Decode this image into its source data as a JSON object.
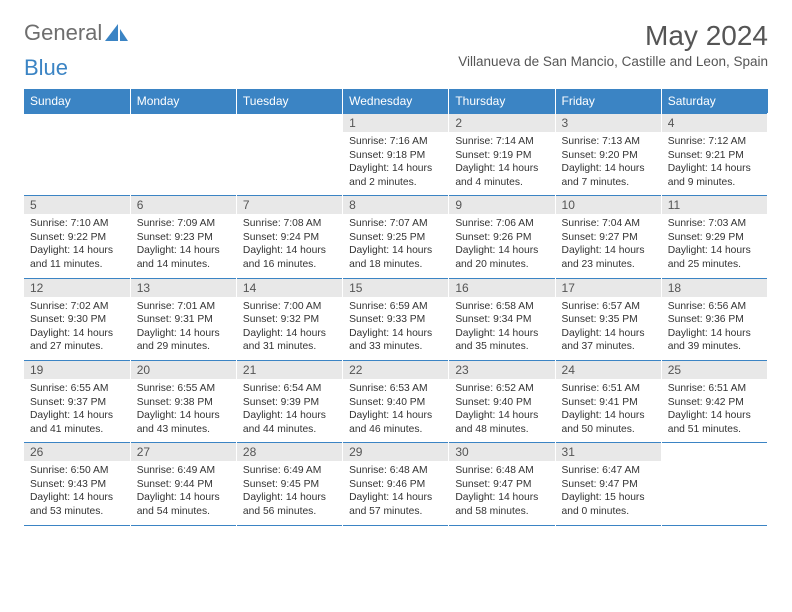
{
  "brand": {
    "part1": "General",
    "part2": "Blue"
  },
  "title": "May 2024",
  "location": "Villanueva de San Mancio, Castille and Leon, Spain",
  "colors": {
    "accent": "#3b84c4",
    "dayband": "#e8e8e8",
    "text": "#333333",
    "heading": "#555555"
  },
  "weekdays": [
    "Sunday",
    "Monday",
    "Tuesday",
    "Wednesday",
    "Thursday",
    "Friday",
    "Saturday"
  ],
  "weeks": [
    [
      null,
      null,
      null,
      {
        "n": "1",
        "sr": "Sunrise: 7:16 AM",
        "ss": "Sunset: 9:18 PM",
        "dl": "Daylight: 14 hours and 2 minutes."
      },
      {
        "n": "2",
        "sr": "Sunrise: 7:14 AM",
        "ss": "Sunset: 9:19 PM",
        "dl": "Daylight: 14 hours and 4 minutes."
      },
      {
        "n": "3",
        "sr": "Sunrise: 7:13 AM",
        "ss": "Sunset: 9:20 PM",
        "dl": "Daylight: 14 hours and 7 minutes."
      },
      {
        "n": "4",
        "sr": "Sunrise: 7:12 AM",
        "ss": "Sunset: 9:21 PM",
        "dl": "Daylight: 14 hours and 9 minutes."
      }
    ],
    [
      {
        "n": "5",
        "sr": "Sunrise: 7:10 AM",
        "ss": "Sunset: 9:22 PM",
        "dl": "Daylight: 14 hours and 11 minutes."
      },
      {
        "n": "6",
        "sr": "Sunrise: 7:09 AM",
        "ss": "Sunset: 9:23 PM",
        "dl": "Daylight: 14 hours and 14 minutes."
      },
      {
        "n": "7",
        "sr": "Sunrise: 7:08 AM",
        "ss": "Sunset: 9:24 PM",
        "dl": "Daylight: 14 hours and 16 minutes."
      },
      {
        "n": "8",
        "sr": "Sunrise: 7:07 AM",
        "ss": "Sunset: 9:25 PM",
        "dl": "Daylight: 14 hours and 18 minutes."
      },
      {
        "n": "9",
        "sr": "Sunrise: 7:06 AM",
        "ss": "Sunset: 9:26 PM",
        "dl": "Daylight: 14 hours and 20 minutes."
      },
      {
        "n": "10",
        "sr": "Sunrise: 7:04 AM",
        "ss": "Sunset: 9:27 PM",
        "dl": "Daylight: 14 hours and 23 minutes."
      },
      {
        "n": "11",
        "sr": "Sunrise: 7:03 AM",
        "ss": "Sunset: 9:29 PM",
        "dl": "Daylight: 14 hours and 25 minutes."
      }
    ],
    [
      {
        "n": "12",
        "sr": "Sunrise: 7:02 AM",
        "ss": "Sunset: 9:30 PM",
        "dl": "Daylight: 14 hours and 27 minutes."
      },
      {
        "n": "13",
        "sr": "Sunrise: 7:01 AM",
        "ss": "Sunset: 9:31 PM",
        "dl": "Daylight: 14 hours and 29 minutes."
      },
      {
        "n": "14",
        "sr": "Sunrise: 7:00 AM",
        "ss": "Sunset: 9:32 PM",
        "dl": "Daylight: 14 hours and 31 minutes."
      },
      {
        "n": "15",
        "sr": "Sunrise: 6:59 AM",
        "ss": "Sunset: 9:33 PM",
        "dl": "Daylight: 14 hours and 33 minutes."
      },
      {
        "n": "16",
        "sr": "Sunrise: 6:58 AM",
        "ss": "Sunset: 9:34 PM",
        "dl": "Daylight: 14 hours and 35 minutes."
      },
      {
        "n": "17",
        "sr": "Sunrise: 6:57 AM",
        "ss": "Sunset: 9:35 PM",
        "dl": "Daylight: 14 hours and 37 minutes."
      },
      {
        "n": "18",
        "sr": "Sunrise: 6:56 AM",
        "ss": "Sunset: 9:36 PM",
        "dl": "Daylight: 14 hours and 39 minutes."
      }
    ],
    [
      {
        "n": "19",
        "sr": "Sunrise: 6:55 AM",
        "ss": "Sunset: 9:37 PM",
        "dl": "Daylight: 14 hours and 41 minutes."
      },
      {
        "n": "20",
        "sr": "Sunrise: 6:55 AM",
        "ss": "Sunset: 9:38 PM",
        "dl": "Daylight: 14 hours and 43 minutes."
      },
      {
        "n": "21",
        "sr": "Sunrise: 6:54 AM",
        "ss": "Sunset: 9:39 PM",
        "dl": "Daylight: 14 hours and 44 minutes."
      },
      {
        "n": "22",
        "sr": "Sunrise: 6:53 AM",
        "ss": "Sunset: 9:40 PM",
        "dl": "Daylight: 14 hours and 46 minutes."
      },
      {
        "n": "23",
        "sr": "Sunrise: 6:52 AM",
        "ss": "Sunset: 9:40 PM",
        "dl": "Daylight: 14 hours and 48 minutes."
      },
      {
        "n": "24",
        "sr": "Sunrise: 6:51 AM",
        "ss": "Sunset: 9:41 PM",
        "dl": "Daylight: 14 hours and 50 minutes."
      },
      {
        "n": "25",
        "sr": "Sunrise: 6:51 AM",
        "ss": "Sunset: 9:42 PM",
        "dl": "Daylight: 14 hours and 51 minutes."
      }
    ],
    [
      {
        "n": "26",
        "sr": "Sunrise: 6:50 AM",
        "ss": "Sunset: 9:43 PM",
        "dl": "Daylight: 14 hours and 53 minutes."
      },
      {
        "n": "27",
        "sr": "Sunrise: 6:49 AM",
        "ss": "Sunset: 9:44 PM",
        "dl": "Daylight: 14 hours and 54 minutes."
      },
      {
        "n": "28",
        "sr": "Sunrise: 6:49 AM",
        "ss": "Sunset: 9:45 PM",
        "dl": "Daylight: 14 hours and 56 minutes."
      },
      {
        "n": "29",
        "sr": "Sunrise: 6:48 AM",
        "ss": "Sunset: 9:46 PM",
        "dl": "Daylight: 14 hours and 57 minutes."
      },
      {
        "n": "30",
        "sr": "Sunrise: 6:48 AM",
        "ss": "Sunset: 9:47 PM",
        "dl": "Daylight: 14 hours and 58 minutes."
      },
      {
        "n": "31",
        "sr": "Sunrise: 6:47 AM",
        "ss": "Sunset: 9:47 PM",
        "dl": "Daylight: 15 hours and 0 minutes."
      },
      null
    ]
  ]
}
